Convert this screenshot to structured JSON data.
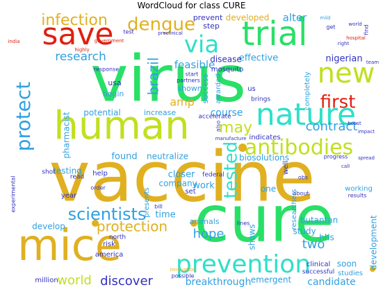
{
  "chart_data": {
    "type": "wordcloud",
    "title": "WordCloud for class CURE",
    "words": [
      {
        "text": "vaccine",
        "color": "#e0b020"
      },
      {
        "text": "virus",
        "color": "#28e066"
      },
      {
        "text": "cure",
        "color": "#28e066"
      },
      {
        "text": "human",
        "color": "#c0e020"
      },
      {
        "text": "mice",
        "color": "#e0b020"
      },
      {
        "text": "trial",
        "color": "#28e066"
      },
      {
        "text": "nature",
        "color": "#30e0c8"
      },
      {
        "text": "prevention",
        "color": "#30e0c8"
      },
      {
        "text": "save",
        "color": "#e02010"
      },
      {
        "text": "new",
        "color": "#c0e020"
      },
      {
        "text": "antibodies",
        "color": "#c0e020"
      },
      {
        "text": "protect",
        "color": "#30a0e0"
      },
      {
        "text": "dengue",
        "color": "#e0b020"
      },
      {
        "text": "infection",
        "color": "#e0b020"
      },
      {
        "text": "via",
        "color": "#30e0c8"
      },
      {
        "text": "first",
        "color": "#e02010"
      },
      {
        "text": "tested",
        "color": "#30e0c8"
      },
      {
        "text": "may",
        "color": "#c0e020"
      },
      {
        "text": "scientists",
        "color": "#30a0e0"
      },
      {
        "text": "protection",
        "color": "#e0b020"
      },
      {
        "text": "research",
        "color": "#30a0e0"
      },
      {
        "text": "brazil",
        "color": "#30a0e0"
      },
      {
        "text": "hope",
        "color": "#30a0e0"
      },
      {
        "text": "two",
        "color": "#30a0e0"
      },
      {
        "text": "contract",
        "color": "#30a0e0"
      },
      {
        "text": "world",
        "color": "#c0e020"
      },
      {
        "text": "discover",
        "color": "#3030c0"
      },
      {
        "text": "development",
        "color": "#30a0e0"
      },
      {
        "text": "breakthrough",
        "color": "#30a0e0"
      },
      {
        "text": "candidate",
        "color": "#30a0e0"
      },
      {
        "text": "emergent",
        "color": "#30a0e0"
      },
      {
        "text": "feasible",
        "color": "#30a0e0"
      },
      {
        "text": "effective",
        "color": "#30a0e0"
      },
      {
        "text": "nigerian",
        "color": "#3030c0"
      },
      {
        "text": "disease",
        "color": "#3030c0"
      },
      {
        "text": "alter",
        "color": "#30a0e0"
      },
      {
        "text": "developed",
        "color": "#e0b020"
      },
      {
        "text": "prevent",
        "color": "#3030c0"
      },
      {
        "text": "step",
        "color": "#3030c0"
      },
      {
        "text": "amp",
        "color": "#e0b020"
      },
      {
        "text": "course",
        "color": "#30a0e0"
      },
      {
        "text": "pharmacist",
        "color": "#30a0e0"
      },
      {
        "text": "potential",
        "color": "#30a0e0"
      },
      {
        "text": "increase",
        "color": "#30a0e0"
      },
      {
        "text": "begin",
        "color": "#30a0e0"
      },
      {
        "text": "shown",
        "color": "#30a0e0"
      },
      {
        "text": "success",
        "color": "#30a0e0"
      },
      {
        "text": "usa",
        "color": "#3030c0"
      },
      {
        "text": "found",
        "color": "#30a0e0"
      },
      {
        "text": "neutralize",
        "color": "#30a0e0"
      },
      {
        "text": "testing",
        "color": "#30a0e0"
      },
      {
        "text": "closer",
        "color": "#30a0e0"
      },
      {
        "text": "company",
        "color": "#30a0e0"
      },
      {
        "text": "work",
        "color": "#30a0e0"
      },
      {
        "text": "time",
        "color": "#30a0e0"
      },
      {
        "text": "develop",
        "color": "#30a0e0"
      },
      {
        "text": "one",
        "color": "#30a0e0"
      },
      {
        "text": "shows",
        "color": "#30a0e0"
      },
      {
        "text": "study",
        "color": "#30a0e0"
      },
      {
        "text": "hhs",
        "color": "#30a0e0"
      },
      {
        "text": "soon",
        "color": "#30a0e0"
      },
      {
        "text": "researchers",
        "color": "#30a0e0"
      },
      {
        "text": "butantan",
        "color": "#30a0e0"
      },
      {
        "text": "animals",
        "color": "#30a0e0"
      },
      {
        "text": "presents",
        "color": "#30a0e0"
      },
      {
        "text": "working",
        "color": "#30a0e0"
      },
      {
        "text": "biosolutions",
        "color": "#30a0e0"
      },
      {
        "text": "awarded",
        "color": "#30a0e0"
      },
      {
        "text": "mosquito",
        "color": "#3030c0"
      },
      {
        "text": "completely",
        "color": "#30a0e0"
      },
      {
        "text": "us",
        "color": "#3030c0"
      },
      {
        "text": "indicates",
        "color": "#3030c0"
      },
      {
        "text": "accelerate",
        "color": "#3030c0"
      },
      {
        "text": "brings",
        "color": "#3030c0"
      },
      {
        "text": "studies",
        "color": "#30a0e0"
      },
      {
        "text": "million",
        "color": "#3030c0"
      },
      {
        "text": "america",
        "color": "#3030c0"
      },
      {
        "text": "risk",
        "color": "#3030c0"
      },
      {
        "text": "clinical",
        "color": "#3030c0"
      },
      {
        "text": "successful",
        "color": "#3030c0"
      },
      {
        "text": "help",
        "color": "#3030c0"
      },
      {
        "text": "read",
        "color": "#3030c0"
      },
      {
        "text": "year",
        "color": "#3030c0"
      },
      {
        "text": "set",
        "color": "#3030c0"
      },
      {
        "text": "north",
        "color": "#3030c0"
      },
      {
        "text": "lines",
        "color": "#3030c0"
      },
      {
        "text": "federal",
        "color": "#3030c0"
      },
      {
        "text": "order",
        "color": "#3030c0"
      },
      {
        "text": "shot",
        "color": "#3030c0"
      },
      {
        "text": "well",
        "color": "#3030c0"
      },
      {
        "text": "bill",
        "color": "#3030c0"
      },
      {
        "text": "test",
        "color": "#3030c0"
      },
      {
        "text": "response",
        "color": "#3030c0"
      },
      {
        "text": "start",
        "color": "#3030c0"
      },
      {
        "text": "partners",
        "color": "#3030c0"
      },
      {
        "text": "progress",
        "color": "#3030c0"
      },
      {
        "text": "obs",
        "color": "#3030c0"
      },
      {
        "text": "about",
        "color": "#3030c0"
      },
      {
        "text": "results",
        "color": "#3030c0"
      },
      {
        "text": "experimental",
        "color": "#3030c0"
      },
      {
        "text": "government",
        "color": "#e02010"
      },
      {
        "text": "highly",
        "color": "#e02010"
      },
      {
        "text": "preclinical",
        "color": "#3030c0"
      },
      {
        "text": "india",
        "color": "#e02010"
      },
      {
        "text": "possible",
        "color": "#3030c0"
      },
      {
        "text": "innovation",
        "color": "#e0b020"
      },
      {
        "text": "manufacture",
        "color": "#3030c0"
      },
      {
        "text": "also",
        "color": "#3030c0"
      },
      {
        "text": "mild",
        "color": "#30a0e0"
      },
      {
        "text": "get",
        "color": "#3030c0"
      },
      {
        "text": "world",
        "color": "#3030c0"
      },
      {
        "text": "hospital",
        "color": "#e02010"
      },
      {
        "text": "right",
        "color": "#3030c0"
      },
      {
        "text": "find",
        "color": "#3030c0"
      },
      {
        "text": "team",
        "color": "#3030c0"
      },
      {
        "text": "spread",
        "color": "#3030c0"
      },
      {
        "text": "impact",
        "color": "#3030c0"
      },
      {
        "text": "boost",
        "color": "#3030c0"
      },
      {
        "text": "call",
        "color": "#3030c0"
      }
    ]
  }
}
